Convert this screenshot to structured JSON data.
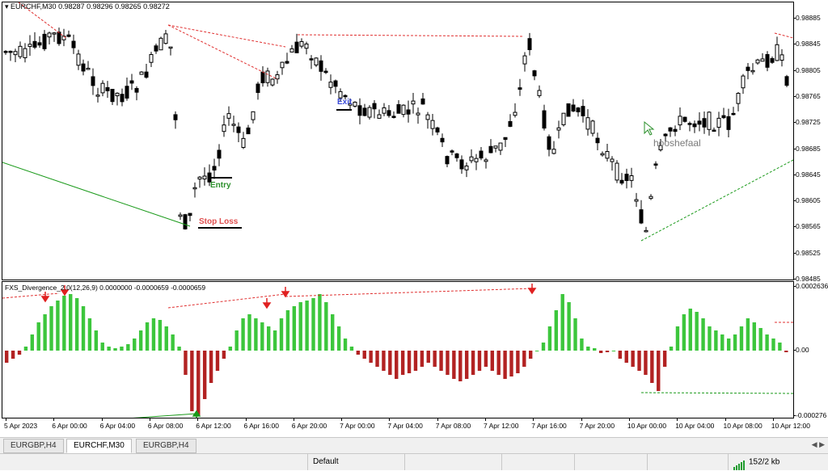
{
  "header": {
    "symbol_label": "EURCHF,M30",
    "ohlc": "0.98287 0.98296 0.98265 0.98272",
    "indicator_label": "FXS_Divergence_2.0(12,26,9) 0.0000000 -0.0000659 -0.0000659"
  },
  "price_axis": [
    "0.98885",
    "0.98845",
    "0.98805",
    "0.98765",
    "0.98725",
    "0.98685",
    "0.98645",
    "0.98605",
    "0.98565",
    "0.98525",
    "0.98485"
  ],
  "indicator_axis": [
    "0.0002636",
    "0.00",
    "-0.000276"
  ],
  "time_axis": [
    "5 Apr 2023",
    "6 Apr 00:00",
    "6 Apr 04:00",
    "6 Apr 08:00",
    "6 Apr 12:00",
    "6 Apr 16:00",
    "6 Apr 20:00",
    "7 Apr 00:00",
    "7 Apr 04:00",
    "7 Apr 08:00",
    "7 Apr 12:00",
    "7 Apr 16:00",
    "7 Apr 20:00",
    "10 Apr 00:00",
    "10 Apr 04:00",
    "10 Apr 08:00",
    "10 Apr 12:00"
  ],
  "annotations": {
    "entry": "Entry",
    "stop_loss": "Stop Loss",
    "exit": "Exit",
    "watermark": "hooshefaal"
  },
  "tabs": [
    "EURGBP,H4",
    "EURCHF,M30",
    "EURGBP,H4"
  ],
  "active_tab": 1,
  "status": {
    "profile": "Default",
    "traffic": "152/2 kb"
  },
  "colors": {
    "bull_hist": "#3cc63c",
    "bear_hist": "#b22222",
    "divergence_line": "#e03030",
    "trend_line": "#1a9a1a",
    "entry_text": "#2a8f2a",
    "stop_text": "#e05050",
    "exit_text": "#3b4bd8"
  }
}
